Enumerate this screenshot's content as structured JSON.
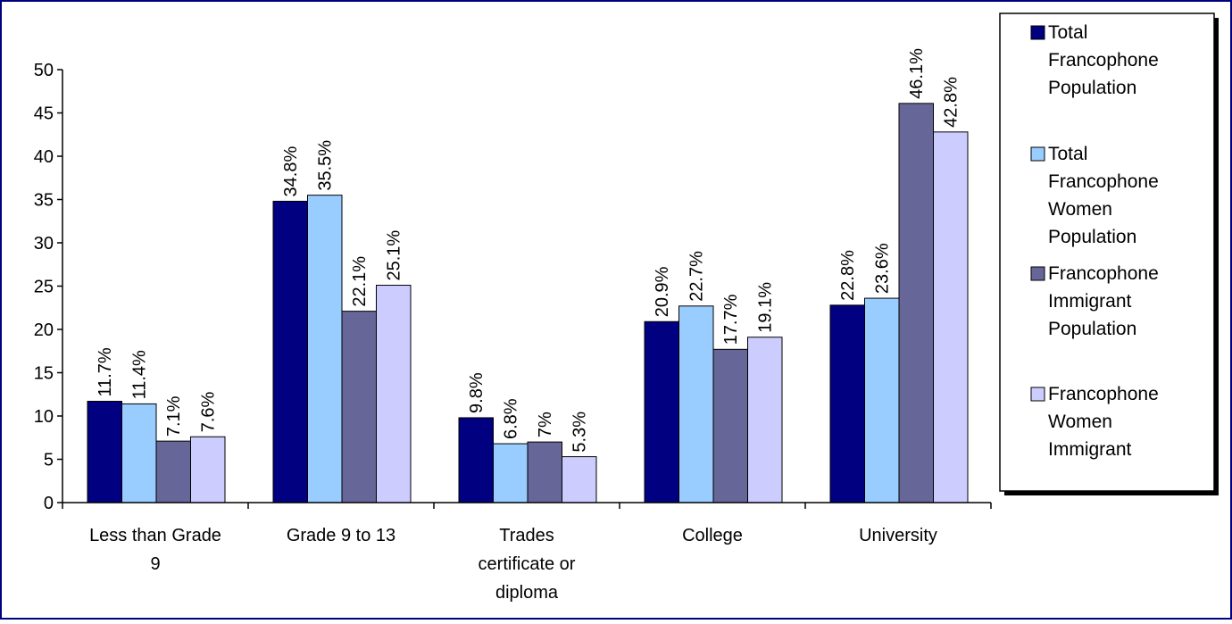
{
  "chart_data": {
    "type": "bar",
    "categories": [
      [
        "Less than Grade",
        "9"
      ],
      [
        "Grade 9 to 13"
      ],
      [
        "Trades",
        "certificate or",
        "diploma"
      ],
      [
        "College"
      ],
      [
        "University"
      ]
    ],
    "series": [
      {
        "name": [
          "Total",
          "Francophone",
          "Population"
        ],
        "color": "#000080",
        "values": [
          11.7,
          34.8,
          9.8,
          20.9,
          22.8
        ],
        "labels": [
          "11.7%",
          "34.8%",
          "9.8%",
          "20.9%",
          "22.8%"
        ]
      },
      {
        "name": [
          "Total",
          "Francophone",
          "Women",
          "Population"
        ],
        "color": "#99CCFF",
        "values": [
          11.4,
          35.5,
          6.8,
          22.7,
          23.6
        ],
        "labels": [
          "11.4%",
          "35.5%",
          "6.8%",
          "22.7%",
          "23.6%"
        ]
      },
      {
        "name": [
          "Francophone",
          "Immigrant",
          "Population"
        ],
        "color": "#666699",
        "values": [
          7.1,
          22.1,
          7,
          17.7,
          46.1
        ],
        "labels": [
          "7.1%",
          "22.1%",
          "7%",
          "17.7%",
          "46.1%"
        ]
      },
      {
        "name": [
          "Francophone",
          "Women",
          "Immigrant"
        ],
        "color": "#CCCCFF",
        "values": [
          7.6,
          25.1,
          5.3,
          19.1,
          42.8
        ],
        "labels": [
          "7.6%",
          "25.1%",
          "5.3%",
          "19.1%",
          "42.8%"
        ]
      }
    ],
    "y_ticks": [
      "0",
      "5",
      "10",
      "15",
      "20",
      "25",
      "30",
      "35",
      "40",
      "45",
      "50"
    ],
    "ylim": [
      0,
      50
    ],
    "grid": false,
    "legend_position": "right",
    "colors": {
      "border": "#000080",
      "axis": "#000000"
    }
  }
}
